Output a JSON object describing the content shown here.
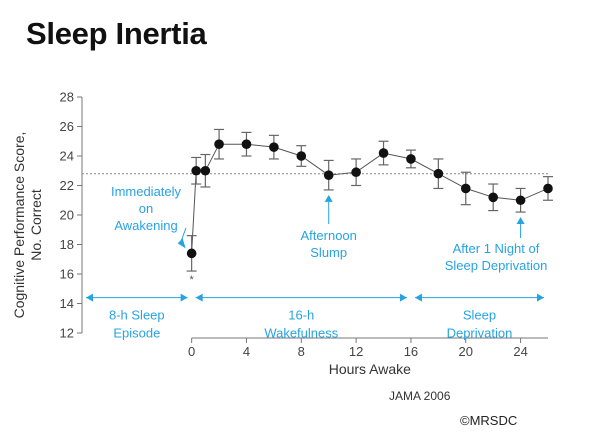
{
  "title": "Sleep Inertia",
  "source": "JAMA 2006",
  "copyright": "©MRSDC",
  "colors": {
    "annotation": "#27a3e3",
    "points": "#111111",
    "line": "#555555"
  },
  "chart_data": {
    "type": "line",
    "xlabel": "Hours Awake",
    "ylabel": "Cognitive Performance Score, No. Correct",
    "ylabel_lines": [
      "Cognitive Performance Score,",
      "No. Correct"
    ],
    "xlim": [
      -8,
      26
    ],
    "ylim": [
      12,
      28
    ],
    "xticks": [
      0,
      4,
      8,
      12,
      16,
      20,
      24
    ],
    "yticks": [
      12,
      14,
      16,
      18,
      20,
      22,
      24,
      26,
      28
    ],
    "grid": false,
    "reference_line_y": 22.8,
    "series": [
      {
        "points": [
          {
            "x": 0,
            "y": 17.4,
            "err": 1.2
          },
          {
            "x": 0.33,
            "y": 23.0,
            "err": 0.9
          },
          {
            "x": 1,
            "y": 23.0,
            "err": 1.1
          },
          {
            "x": 2,
            "y": 24.8,
            "err": 1.0
          },
          {
            "x": 4,
            "y": 24.8,
            "err": 0.8
          },
          {
            "x": 6,
            "y": 24.6,
            "err": 0.8
          },
          {
            "x": 8,
            "y": 24.0,
            "err": 0.7
          },
          {
            "x": 10,
            "y": 22.7,
            "err": 1.0
          },
          {
            "x": 12,
            "y": 22.9,
            "err": 0.9
          },
          {
            "x": 14,
            "y": 24.2,
            "err": 0.8
          },
          {
            "x": 16,
            "y": 23.8,
            "err": 0.6
          },
          {
            "x": 18,
            "y": 22.8,
            "err": 1.0
          },
          {
            "x": 20,
            "y": 21.8,
            "err": 1.1
          },
          {
            "x": 22,
            "y": 21.2,
            "err": 0.9
          },
          {
            "x": 24,
            "y": 21.0,
            "err": 0.8
          },
          {
            "x": 26,
            "y": 21.8,
            "err": 0.8
          }
        ]
      }
    ],
    "point_marker": "*",
    "annotations": [
      {
        "id": "immediately",
        "lines": [
          "Immediately",
          "on",
          "Awakening"
        ]
      },
      {
        "id": "afternoon",
        "lines": [
          "Afternoon",
          "Slump"
        ]
      },
      {
        "id": "after-night",
        "lines": [
          "After 1 Night of",
          "Sleep Deprivation"
        ]
      }
    ],
    "phases": [
      {
        "id": "sleep-episode",
        "lines": [
          "8-h Sleep",
          "Episode"
        ],
        "x_start": -8,
        "x_end": 0
      },
      {
        "id": "wakefulness",
        "lines": [
          "16-h",
          "Wakefulness"
        ],
        "x_start": 0,
        "x_end": 16
      },
      {
        "id": "deprivation",
        "lines": [
          "Sleep",
          "Deprivation"
        ],
        "x_start": 16,
        "x_end": 26
      }
    ]
  }
}
